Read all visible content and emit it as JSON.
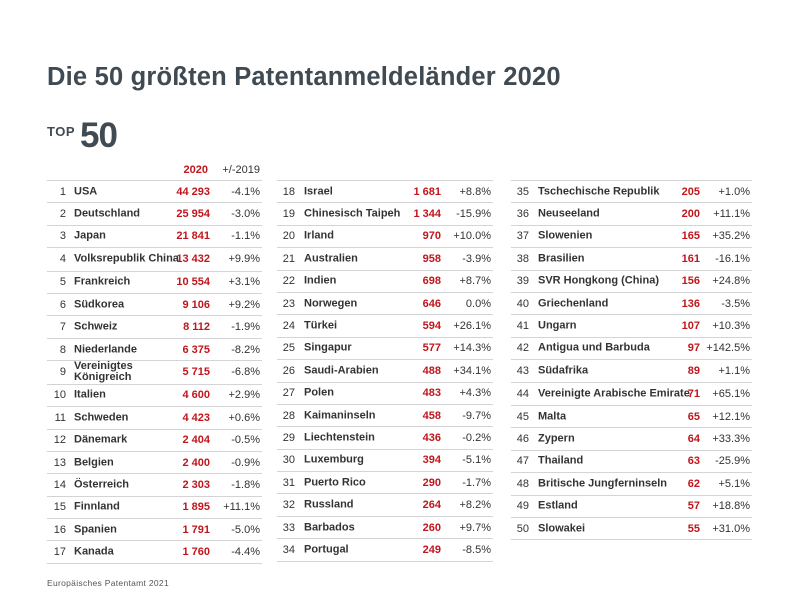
{
  "title": "Die 50 größten Patentanmeldeländer 2020",
  "logo": {
    "top": "TOP",
    "number": "50"
  },
  "header": {
    "year": "2020",
    "change": "+/-2019"
  },
  "footer": "Europäisches Patentamt 2021",
  "columns": [
    {
      "rows": [
        {
          "rank": "1",
          "country": "USA",
          "value": "44 293",
          "change": "-4.1%"
        },
        {
          "rank": "2",
          "country": "Deutschland",
          "value": "25 954",
          "change": "-3.0%"
        },
        {
          "rank": "3",
          "country": "Japan",
          "value": "21 841",
          "change": "-1.1%"
        },
        {
          "rank": "4",
          "country": "Volksrepublik China",
          "value": "13 432",
          "change": "+9.9%"
        },
        {
          "rank": "5",
          "country": "Frankreich",
          "value": "10 554",
          "change": "+3.1%"
        },
        {
          "rank": "6",
          "country": "Südkorea",
          "value": "9 106",
          "change": "+9.2%"
        },
        {
          "rank": "7",
          "country": "Schweiz",
          "value": "8 112",
          "change": "-1.9%"
        },
        {
          "rank": "8",
          "country": "Niederlande",
          "value": "6 375",
          "change": "-8.2%"
        },
        {
          "rank": "9",
          "country": "Vereinigtes Königreich",
          "value": "5 715",
          "change": "-6.8%"
        },
        {
          "rank": "10",
          "country": "Italien",
          "value": "4 600",
          "change": "+2.9%"
        },
        {
          "rank": "11",
          "country": "Schweden",
          "value": "4 423",
          "change": "+0.6%"
        },
        {
          "rank": "12",
          "country": "Dänemark",
          "value": "2 404",
          "change": "-0.5%"
        },
        {
          "rank": "13",
          "country": "Belgien",
          "value": "2 400",
          "change": "-0.9%"
        },
        {
          "rank": "14",
          "country": "Österreich",
          "value": "2 303",
          "change": "-1.8%"
        },
        {
          "rank": "15",
          "country": "Finnland",
          "value": "1 895",
          "change": "+11.1%"
        },
        {
          "rank": "16",
          "country": "Spanien",
          "value": "1 791",
          "change": "-5.0%"
        },
        {
          "rank": "17",
          "country": "Kanada",
          "value": "1 760",
          "change": "-4.4%"
        }
      ]
    },
    {
      "rows": [
        {
          "rank": "18",
          "country": "Israel",
          "value": "1 681",
          "change": "+8.8%"
        },
        {
          "rank": "19",
          "country": "Chinesisch Taipeh",
          "value": "1 344",
          "change": "-15.9%"
        },
        {
          "rank": "20",
          "country": "Irland",
          "value": "970",
          "change": "+10.0%"
        },
        {
          "rank": "21",
          "country": "Australien",
          "value": "958",
          "change": "-3.9%"
        },
        {
          "rank": "22",
          "country": "Indien",
          "value": "698",
          "change": "+8.7%"
        },
        {
          "rank": "23",
          "country": "Norwegen",
          "value": "646",
          "change": "0.0%"
        },
        {
          "rank": "24",
          "country": "Türkei",
          "value": "594",
          "change": "+26.1%"
        },
        {
          "rank": "25",
          "country": "Singapur",
          "value": "577",
          "change": "+14.3%"
        },
        {
          "rank": "26",
          "country": "Saudi-Arabien",
          "value": "488",
          "change": "+34.1%"
        },
        {
          "rank": "27",
          "country": "Polen",
          "value": "483",
          "change": "+4.3%"
        },
        {
          "rank": "28",
          "country": "Kaimaninseln",
          "value": "458",
          "change": "-9.7%"
        },
        {
          "rank": "29",
          "country": "Liechtenstein",
          "value": "436",
          "change": "-0.2%"
        },
        {
          "rank": "30",
          "country": "Luxemburg",
          "value": "394",
          "change": "-5.1%"
        },
        {
          "rank": "31",
          "country": "Puerto Rico",
          "value": "290",
          "change": "-1.7%"
        },
        {
          "rank": "32",
          "country": "Russland",
          "value": "264",
          "change": "+8.2%"
        },
        {
          "rank": "33",
          "country": "Barbados",
          "value": "260",
          "change": "+9.7%"
        },
        {
          "rank": "34",
          "country": "Portugal",
          "value": "249",
          "change": "-8.5%"
        }
      ]
    },
    {
      "rows": [
        {
          "rank": "35",
          "country": "Tschechische Republik",
          "value": "205",
          "change": "+1.0%"
        },
        {
          "rank": "36",
          "country": "Neuseeland",
          "value": "200",
          "change": "+11.1%"
        },
        {
          "rank": "37",
          "country": "Slowenien",
          "value": "165",
          "change": "+35.2%"
        },
        {
          "rank": "38",
          "country": "Brasilien",
          "value": "161",
          "change": "-16.1%"
        },
        {
          "rank": "39",
          "country": "SVR Hongkong (China)",
          "value": "156",
          "change": "+24.8%"
        },
        {
          "rank": "40",
          "country": "Griechenland",
          "value": "136",
          "change": "-3.5%"
        },
        {
          "rank": "41",
          "country": "Ungarn",
          "value": "107",
          "change": "+10.3%"
        },
        {
          "rank": "42",
          "country": "Antigua und Barbuda",
          "value": "97",
          "change": "+142.5%"
        },
        {
          "rank": "43",
          "country": "Südafrika",
          "value": "89",
          "change": "+1.1%"
        },
        {
          "rank": "44",
          "country": "Vereinigte Arabische Emirate",
          "value": "71",
          "change": "+65.1%"
        },
        {
          "rank": "45",
          "country": "Malta",
          "value": "65",
          "change": "+12.1%"
        },
        {
          "rank": "46",
          "country": "Zypern",
          "value": "64",
          "change": "+33.3%"
        },
        {
          "rank": "47",
          "country": "Thailand",
          "value": "63",
          "change": "-25.9%"
        },
        {
          "rank": "48",
          "country": "Britische Jungferninseln",
          "value": "62",
          "change": "+5.1%"
        },
        {
          "rank": "49",
          "country": "Estland",
          "value": "57",
          "change": "+18.8%"
        },
        {
          "rank": "50",
          "country": "Slowakei",
          "value": "55",
          "change": "+31.0%"
        }
      ]
    }
  ]
}
